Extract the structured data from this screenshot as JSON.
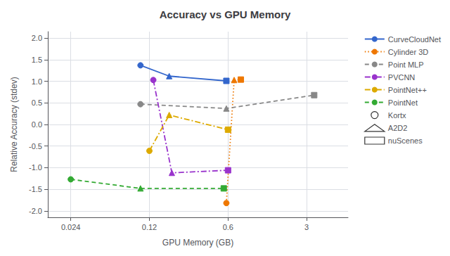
{
  "chart_data": {
    "type": "line",
    "title": "Accuracy vs GPU Memory",
    "xlabel": "GPU Memory (GB)",
    "ylabel": "Relative Accuracy (stdev)",
    "log": "x",
    "xlim": [
      0.015,
      7.0
    ],
    "ylim": [
      -2.15,
      2.15
    ],
    "xticks": [
      0.024,
      0.12,
      0.6,
      3
    ],
    "yticks": [
      {
        "value": -2.0,
        "label": "-2.0"
      },
      {
        "value": -1.5,
        "label": "-1.5"
      },
      {
        "value": -1.0,
        "label": "-1.0"
      },
      {
        "value": -0.5,
        "label": "-0.5"
      },
      {
        "value": 0.0,
        "label": "0.0"
      },
      0.5,
      {
        "value": 1.0,
        "label": "1.0"
      },
      1.5,
      {
        "value": 2.0,
        "label": "2.0"
      }
    ],
    "grid": true,
    "legend": "right",
    "datasets": [
      {
        "name": "Kortx",
        "marker": "circle",
        "color": "#000000"
      },
      {
        "name": "A2D2",
        "marker": "triangle",
        "color": "#000000"
      },
      {
        "name": "nuScenes",
        "marker": "square",
        "color": "#000000"
      }
    ],
    "series": [
      {
        "name": "CurveCloudNet",
        "color": "#3366cc",
        "line_style": "solid",
        "x": [
          0.1,
          0.18,
          0.58
        ],
        "values": [
          1.37,
          1.12,
          1.01
        ]
      },
      {
        "name": "Cylinder 3D",
        "color": "#ee7700",
        "line_style": "dotted",
        "x": [
          0.58,
          0.68,
          0.78
        ],
        "values": [
          -1.82,
          1.03,
          1.04
        ]
      },
      {
        "name": "Point MLP",
        "color": "#888888",
        "line_style": "dashed",
        "x": [
          0.1,
          0.58,
          3.5
        ],
        "values": [
          0.47,
          0.37,
          0.68
        ]
      },
      {
        "name": "PVCNN",
        "color": "#9933cc",
        "line_style": "dashdot",
        "x": [
          0.13,
          0.19,
          0.6
        ],
        "values": [
          1.03,
          -1.12,
          -1.06
        ]
      },
      {
        "name": "PointNet++",
        "color": "#ddaa00",
        "line_style": "dashdot",
        "x": [
          0.12,
          0.18,
          0.6
        ],
        "values": [
          -0.61,
          0.22,
          -0.12
        ]
      },
      {
        "name": "PointNet",
        "color": "#33aa33",
        "line_style": "dashed",
        "x": [
          0.024,
          0.1,
          0.55
        ],
        "values": [
          -1.27,
          -1.48,
          -1.48
        ]
      }
    ]
  }
}
